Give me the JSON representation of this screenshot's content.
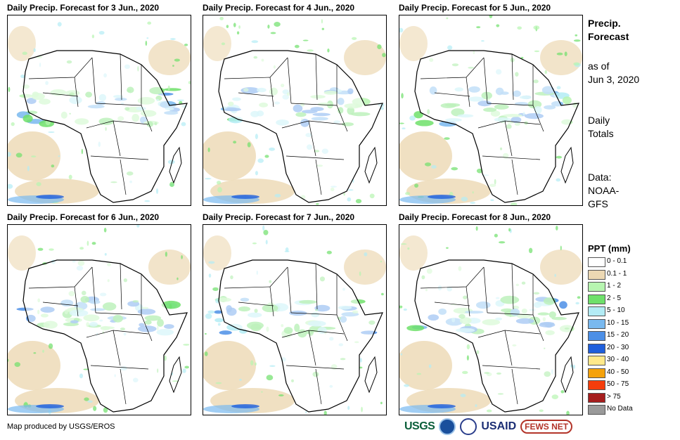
{
  "panels": [
    {
      "title": "Daily Precip. Forecast for 3 Jun., 2020"
    },
    {
      "title": "Daily Precip. Forecast for 4 Jun., 2020"
    },
    {
      "title": "Daily Precip. Forecast for 5 Jun., 2020"
    },
    {
      "title": "Daily Precip. Forecast for 6 Jun., 2020"
    },
    {
      "title": "Daily Precip. Forecast for 7 Jun., 2020"
    },
    {
      "title": "Daily Precip. Forecast for 8 Jun., 2020"
    }
  ],
  "side_info": {
    "title_line1": "Precip.",
    "title_line2": "Forecast",
    "asof_line1": "as of",
    "asof_line2": "Jun 3, 2020",
    "totals_line1": "Daily",
    "totals_line2": "Totals",
    "source_line1": "Data:",
    "source_line2": "NOAA-",
    "source_line3": "GFS"
  },
  "legend": {
    "title": "PPT (mm)",
    "items": [
      {
        "label": "0 - 0.1",
        "color": "#ffffff"
      },
      {
        "label": "0.1 - 1",
        "color": "#ecd8b3"
      },
      {
        "label": "1 - 2",
        "color": "#b7f5b0"
      },
      {
        "label": "2 - 5",
        "color": "#6ee06a"
      },
      {
        "label": "5 - 10",
        "color": "#b3ecf5"
      },
      {
        "label": "10 - 15",
        "color": "#79b9ef"
      },
      {
        "label": "15 - 20",
        "color": "#4c8fe6"
      },
      {
        "label": "20 - 30",
        "color": "#1f5fdc"
      },
      {
        "label": "30 - 40",
        "color": "#ffe98a"
      },
      {
        "label": "40 - 50",
        "color": "#f5a20b"
      },
      {
        "label": "50 - 75",
        "color": "#f53d0b"
      },
      {
        "label": "> 75",
        "color": "#a51d1d"
      },
      {
        "label": "No Data",
        "color": "#9a9a9a"
      }
    ]
  },
  "credit": "Map produced by USGS/EROS",
  "logos": {
    "usgs": "USGS",
    "usaid": "USAID",
    "fews": "FEWS NET"
  }
}
